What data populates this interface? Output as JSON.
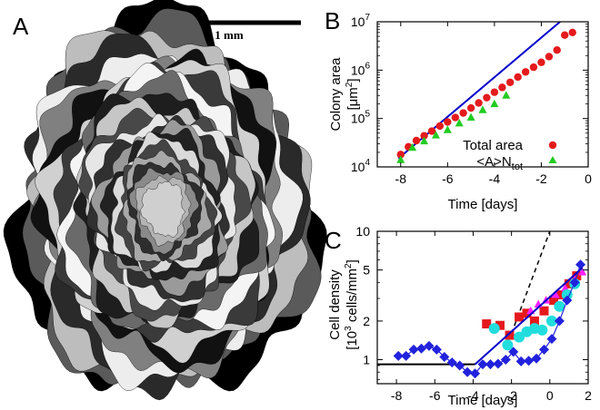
{
  "panels": {
    "a": {
      "letter": "A",
      "scalebar_label": "1 mm"
    },
    "b": {
      "letter": "B"
    },
    "c": {
      "letter": "C"
    }
  },
  "colors": {
    "fit_line": "#0000cc",
    "total_area": "#e41a1c",
    "a_ntot": "#22cc22",
    "squares": "#e41a1c",
    "triangles": "#ff22ff",
    "circles": "#22dddd",
    "diamonds": "#2222dd"
  },
  "chart_data": [
    {
      "type": "scatter",
      "panel": "B",
      "title": "",
      "xlabel": "Time [days]",
      "ylabel_line1": "Colony area",
      "ylabel_unit": "[μm",
      "ylabel_sup": "2",
      "ylabel_close": "]",
      "xlim": [
        -9,
        0
      ],
      "ylim": [
        10000,
        10000000
      ],
      "yscale": "log",
      "xticks": [
        -8,
        -6,
        -4,
        -2,
        0
      ],
      "xtick_labels": [
        "-8",
        "-6",
        "-4",
        "-2",
        "0"
      ],
      "yticks": [
        10000,
        100000,
        1000000,
        10000000
      ],
      "ytick_base": "10",
      "ytick_exps": [
        "4",
        "5",
        "6",
        "7"
      ],
      "legend_position": "bottom-right",
      "series": [
        {
          "name": "Total area",
          "marker": "circle",
          "x": [
            -8.0,
            -7.67,
            -7.33,
            -7.0,
            -6.67,
            -6.33,
            -6.0,
            -5.67,
            -5.33,
            -5.0,
            -4.67,
            -4.33,
            -4.0,
            -3.67,
            -3.33,
            -3.0,
            -2.67,
            -2.33,
            -2.0,
            -1.67,
            -1.33,
            -1.0,
            -0.67
          ],
          "y": [
            18000,
            26000,
            35000,
            44000,
            55000,
            70000,
            85000,
            105000,
            130000,
            165000,
            210000,
            270000,
            350000,
            440000,
            560000,
            720000,
            920000,
            1150000,
            1450000,
            1900000,
            2600000,
            5300000,
            6000000
          ]
        },
        {
          "name_main": "<A>N",
          "name_sub": "tot",
          "marker": "triangle",
          "x": [
            -8.0,
            -7.5,
            -7.0,
            -6.5,
            -6.0,
            -5.5,
            -5.0,
            -4.5,
            -4.0,
            -3.5
          ],
          "y": [
            14000,
            25000,
            34000,
            45000,
            58000,
            80000,
            105000,
            150000,
            200000,
            300000
          ]
        }
      ],
      "fit": {
        "x": [
          -8.1,
          -1.2
        ],
        "y": [
          15000,
          10000000
        ]
      }
    },
    {
      "type": "scatter",
      "panel": "C",
      "title": "",
      "xlabel": "Time [days]",
      "ylabel_line1": "Cell density",
      "ylabel_unit": "[10",
      "ylabel_sup": "3",
      "ylabel_rest": " cells/mm",
      "ylabel_sup2": "2",
      "ylabel_close": "]",
      "xlim": [
        -9,
        2
      ],
      "ylim": [
        0.65,
        10
      ],
      "yscale": "log",
      "xticks": [
        -8,
        -6,
        -4,
        -2,
        0,
        2
      ],
      "xtick_labels": [
        "-8",
        "-6",
        "-4",
        "-2",
        "0",
        "2"
      ],
      "yticks": [
        1,
        2,
        5,
        10
      ],
      "ytick_labels": [
        "1",
        "2",
        "5",
        "10"
      ],
      "series": [
        {
          "marker": "diamond",
          "x": [
            -7.9,
            -7.5,
            -7.1,
            -6.7,
            -6.3,
            -5.9,
            -5.5,
            -5.1,
            -4.7,
            -4.3,
            -3.9,
            -3.5,
            -3.1,
            -2.7,
            -2.3,
            -1.9,
            -1.5,
            -1.1,
            -0.7,
            -0.3,
            0.1,
            0.5,
            0.9,
            1.3,
            1.6
          ],
          "y": [
            1.07,
            1.07,
            1.2,
            1.22,
            1.28,
            1.2,
            1.05,
            0.95,
            0.9,
            0.8,
            0.78,
            0.92,
            0.92,
            0.93,
            1.0,
            1.15,
            0.97,
            0.98,
            1.02,
            1.2,
            1.45,
            2.0,
            2.9,
            4.0,
            5.5
          ]
        },
        {
          "marker": "square",
          "x": [
            -3.3,
            -2.6,
            -2.1,
            -1.6,
            -1.2,
            -0.8,
            -0.3,
            0.2,
            0.6,
            1.0,
            1.4
          ],
          "y": [
            1.9,
            1.85,
            1.55,
            2.15,
            2.3,
            2.0,
            2.4,
            2.9,
            3.2,
            3.9,
            4.5
          ]
        },
        {
          "marker": "triangle",
          "x": [
            -1.0,
            -0.6,
            -0.2,
            0.3,
            0.8,
            1.3,
            1.7
          ],
          "y": [
            2.4,
            2.7,
            2.9,
            3.2,
            3.6,
            4.2,
            4.8
          ]
        },
        {
          "marker": "circle",
          "x": [
            -2.9,
            -2.2,
            -1.6,
            -1.2,
            -0.8,
            -0.4,
            0.1,
            0.5,
            0.9,
            1.3
          ],
          "y": [
            1.75,
            1.3,
            1.5,
            1.65,
            1.75,
            1.7,
            2.0,
            2.6,
            3.2,
            3.9
          ]
        }
      ],
      "flat_line": {
        "x": [
          -9,
          -3.9
        ],
        "y": [
          0.92,
          0.92
        ]
      },
      "fit_line": {
        "x": [
          -3.9,
          1.7
        ],
        "y": [
          0.92,
          5.2
        ]
      },
      "dashed_line": {
        "x": [
          -2.0,
          0.0
        ],
        "y": [
          1.6,
          10.0
        ]
      }
    }
  ]
}
